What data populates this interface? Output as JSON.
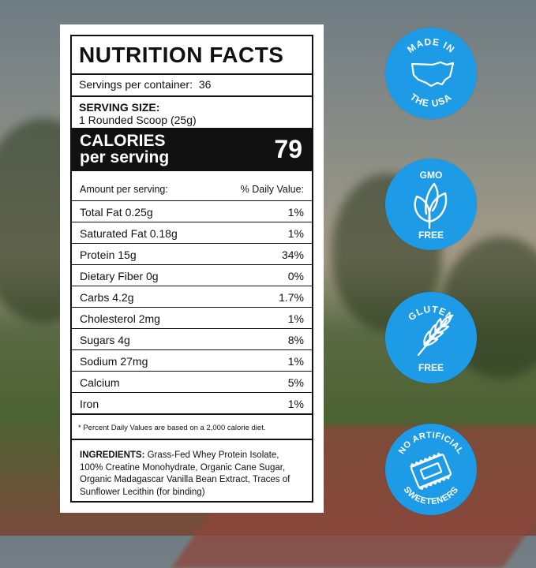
{
  "label": {
    "title": "NUTRITION FACTS",
    "servings_label": "Servings per container:",
    "servings_value": "36",
    "serving_size_label": "SERVING SIZE:",
    "serving_size_value": "1 Rounded Scoop (25g)",
    "calories_line1": "CALORIES",
    "calories_line2": "per serving",
    "calories_value": "79",
    "amount_header": "Amount per serving:",
    "dv_header": "% Daily Value:",
    "rows": [
      {
        "name": "Total Fat 0.25g",
        "dv": "1%"
      },
      {
        "name": "Saturated Fat  0.18g",
        "dv": "1%"
      },
      {
        "name": "Protein 15g",
        "dv": "34%"
      },
      {
        "name": "Dietary Fiber  0g",
        "dv": "0%"
      },
      {
        "name": "Carbs  4.2g",
        "dv": "1.7%"
      },
      {
        "name": "Cholesterol  2mg",
        "dv": "1%"
      },
      {
        "name": "Sugars  4g",
        "dv": "8%"
      },
      {
        "name": "Sodium  27mg",
        "dv": "1%"
      },
      {
        "name": "Calcium",
        "dv": "5%"
      },
      {
        "name": "Iron",
        "dv": "1%"
      }
    ],
    "footnote": "* Percent Daily Values are based on a 2,000 calorie diet.",
    "ingredients_label": "INGREDIENTS:",
    "ingredients_text": " Grass-Fed Whey Protein Isolate, 100% Creatine Monohydrate, Organic Cane Sugar, Organic Madagascar Vanilla Bean Extract, Traces of Sunflower Lecithin (for binding)"
  },
  "badges": [
    {
      "top": "MADE IN",
      "bottom": "THE USA",
      "icon": "usa-map-icon"
    },
    {
      "top": "GMO",
      "bottom": "FREE",
      "icon": "leaves-icon"
    },
    {
      "top": "GLUTEN",
      "bottom": "FREE",
      "icon": "wheat-icon"
    },
    {
      "top": "NO ARTIFICIAL",
      "bottom": "SWEETENERS",
      "icon": "sweetener-packet-icon"
    }
  ],
  "colors": {
    "badge": "#1e9be6",
    "label_ink": "#111111"
  }
}
